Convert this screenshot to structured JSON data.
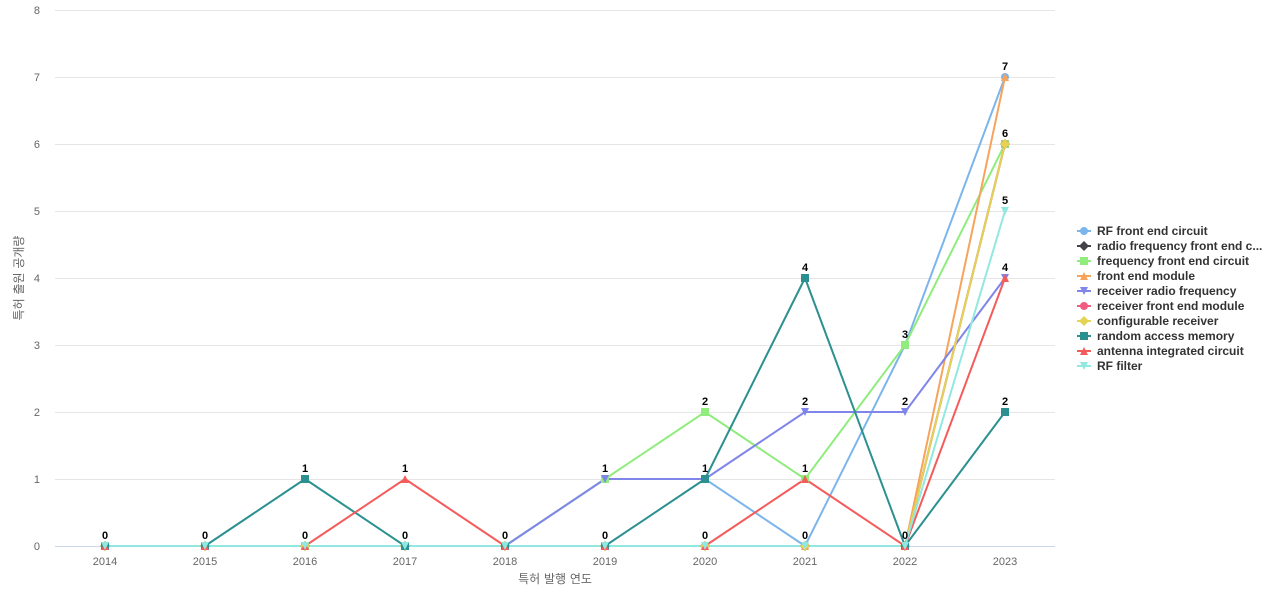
{
  "chart_data": {
    "type": "line",
    "xlabel": "특허 발행 연도",
    "ylabel": "특허 출원 공개량",
    "ylim": [
      0,
      8
    ],
    "yticks": [
      0,
      1,
      2,
      3,
      4,
      5,
      6,
      7,
      8
    ],
    "grid": true,
    "legend_position": "right",
    "categories": [
      "2014",
      "2015",
      "2016",
      "2017",
      "2018",
      "2019",
      "2020",
      "2021",
      "2022",
      "2023"
    ],
    "series": [
      {
        "name": "RF front end circuit",
        "color": "#7cb5ec",
        "marker": "circle",
        "values": [
          0,
          0,
          0,
          0,
          0,
          1,
          1,
          0,
          3,
          7
        ]
      },
      {
        "name": "radio frequency front end c...",
        "color": "#434348",
        "marker": "diamond",
        "values": [
          0,
          0,
          0,
          0,
          0,
          0,
          0,
          0,
          0,
          6
        ]
      },
      {
        "name": "frequency front end circuit",
        "color": "#90ed7d",
        "marker": "square",
        "values": [
          0,
          0,
          0,
          0,
          0,
          1,
          2,
          1,
          3,
          6
        ]
      },
      {
        "name": "front end module",
        "color": "#f7a35c",
        "marker": "triangle",
        "values": [
          0,
          0,
          0,
          0,
          0,
          0,
          0,
          0,
          0,
          7
        ]
      },
      {
        "name": "receiver radio frequency",
        "color": "#8085e9",
        "marker": "triangle-down",
        "values": [
          0,
          0,
          0,
          0,
          0,
          1,
          1,
          2,
          2,
          4
        ]
      },
      {
        "name": "receiver front end module",
        "color": "#f15c80",
        "marker": "circle",
        "values": [
          0,
          0,
          0,
          0,
          0,
          0,
          0,
          0,
          0,
          6
        ]
      },
      {
        "name": "configurable receiver",
        "color": "#e4d354",
        "marker": "diamond",
        "values": [
          0,
          0,
          0,
          0,
          0,
          0,
          0,
          0,
          0,
          6
        ]
      },
      {
        "name": "random access memory",
        "color": "#2b908f",
        "marker": "square",
        "values": [
          0,
          0,
          1,
          0,
          0,
          0,
          1,
          4,
          0,
          2
        ]
      },
      {
        "name": "antenna integrated circuit",
        "color": "#f45b5b",
        "marker": "triangle",
        "values": [
          0,
          0,
          0,
          1,
          0,
          0,
          0,
          1,
          0,
          4
        ]
      },
      {
        "name": "RF filter",
        "color": "#91e8e1",
        "marker": "triangle-down",
        "values": [
          0,
          0,
          0,
          0,
          0,
          0,
          0,
          0,
          0,
          5
        ]
      }
    ],
    "data_labels": [
      {
        "x": "2014",
        "value": 0
      },
      {
        "x": "2015",
        "value": 0
      },
      {
        "x": "2016",
        "value": 1
      },
      {
        "x": "2016",
        "value": 0
      },
      {
        "x": "2017",
        "value": 1
      },
      {
        "x": "2017",
        "value": 0
      },
      {
        "x": "2018",
        "value": 0
      },
      {
        "x": "2019",
        "value": 1
      },
      {
        "x": "2019",
        "value": 0
      },
      {
        "x": "2020",
        "value": 2
      },
      {
        "x": "2020",
        "value": 1
      },
      {
        "x": "2020",
        "value": 0
      },
      {
        "x": "2021",
        "value": 4
      },
      {
        "x": "2021",
        "value": 2
      },
      {
        "x": "2021",
        "value": 1
      },
      {
        "x": "2021",
        "value": 0
      },
      {
        "x": "2022",
        "value": 3
      },
      {
        "x": "2022",
        "value": 2
      },
      {
        "x": "2022",
        "value": 0
      },
      {
        "x": "2023",
        "value": 7
      },
      {
        "x": "2023",
        "value": 6
      },
      {
        "x": "2023",
        "value": 5
      },
      {
        "x": "2023",
        "value": 4
      },
      {
        "x": "2023",
        "value": 2
      }
    ]
  }
}
